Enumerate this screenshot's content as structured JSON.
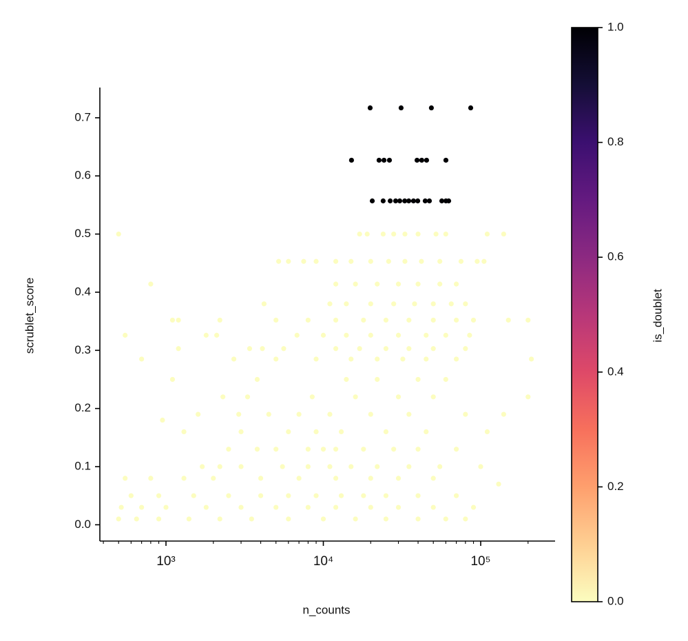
{
  "chart_data": {
    "type": "scatter",
    "x_label": "n_counts",
    "y_label": "scrublet_score",
    "xlim": [
      380,
      297000
    ],
    "ylim": [
      -0.028,
      0.752
    ],
    "x_log": true,
    "xticks": [
      {
        "value": 1000,
        "label": "10³"
      },
      {
        "value": 10000,
        "label": "10⁴"
      },
      {
        "value": 100000,
        "label": "10⁵"
      }
    ],
    "xminorticks": [
      400,
      500,
      600,
      700,
      800,
      900,
      2000,
      3000,
      4000,
      5000,
      6000,
      7000,
      8000,
      9000,
      20000,
      30000,
      40000,
      50000,
      60000,
      70000,
      80000,
      90000,
      200000
    ],
    "yticks": [
      {
        "value": 0,
        "label": "0.0"
      },
      0.1,
      0.2,
      0.3,
      0.4,
      0.5,
      0.6,
      0.7
    ],
    "colormap": "magma_r",
    "colorbar": {
      "label": "is_doublet",
      "lim": [
        0,
        1
      ],
      "ticks": [
        {
          "value": 0,
          "label": "0.0"
        },
        0.2,
        0.4,
        0.6,
        0.8,
        {
          "value": 1,
          "label": "1.0"
        }
      ]
    },
    "groups": [
      {
        "color_value": 0,
        "x": [
          500,
          17000,
          19000,
          24000,
          28000,
          33000,
          40000,
          52000,
          60000,
          110000,
          140000,
          5200,
          6000,
          7500,
          9000,
          12000,
          15000,
          20000,
          26000,
          33000,
          42000,
          55000,
          75000,
          95000,
          105000,
          800,
          12000,
          16000,
          22000,
          30000,
          40000,
          55000,
          70000,
          4200,
          11000,
          14000,
          20000,
          28000,
          38000,
          50000,
          65000,
          80000,
          1100,
          1200,
          2200,
          5000,
          8000,
          12000,
          18000,
          25000,
          35000,
          50000,
          70000,
          90000,
          150000,
          200000,
          550,
          1800,
          2100,
          6800,
          10000,
          14000,
          20000,
          30000,
          45000,
          60000,
          85000,
          1200,
          3400,
          4100,
          5600,
          12000,
          17000,
          25000,
          35000,
          50000,
          80000,
          700,
          2700,
          5000,
          9000,
          15000,
          22000,
          32000,
          45000,
          70000,
          210000,
          1100,
          3800,
          14000,
          22000,
          40000,
          60000,
          2300,
          3300,
          8500,
          16000,
          30000,
          50000,
          200000,
          1600,
          2900,
          4500,
          7000,
          11000,
          20000,
          35000,
          80000,
          140000,
          950,
          1300,
          3000,
          6000,
          9000,
          13000,
          25000,
          45000,
          110000,
          2500,
          3800,
          5000,
          8000,
          10000,
          12000,
          18000,
          28000,
          40000,
          70000,
          1700,
          2200,
          3000,
          5500,
          8000,
          11000,
          15000,
          22000,
          35000,
          55000,
          100000,
          550,
          800,
          1300,
          2000,
          4000,
          7000,
          12000,
          20000,
          30000,
          50000,
          130000,
          600,
          900,
          1500,
          2500,
          4000,
          6000,
          9000,
          13000,
          18000,
          25000,
          40000,
          70000,
          520,
          700,
          1000,
          1800,
          3000,
          5000,
          8000,
          12000,
          20000,
          30000,
          50000,
          90000,
          500,
          650,
          900,
          1400,
          2200,
          3500,
          6000,
          10000,
          16000,
          25000,
          40000,
          60000,
          80000
        ],
        "y": [
          0.5,
          0.5,
          0.5,
          0.5,
          0.5,
          0.5,
          0.5,
          0.5,
          0.5,
          0.5,
          0.5,
          0.453,
          0.453,
          0.453,
          0.453,
          0.453,
          0.453,
          0.453,
          0.453,
          0.453,
          0.453,
          0.453,
          0.453,
          0.453,
          0.453,
          0.414,
          0.414,
          0.414,
          0.414,
          0.414,
          0.414,
          0.414,
          0.414,
          0.38,
          0.38,
          0.38,
          0.38,
          0.38,
          0.38,
          0.38,
          0.38,
          0.38,
          0.352,
          0.352,
          0.352,
          0.352,
          0.352,
          0.352,
          0.352,
          0.352,
          0.352,
          0.352,
          0.352,
          0.352,
          0.352,
          0.352,
          0.326,
          0.326,
          0.326,
          0.326,
          0.326,
          0.326,
          0.326,
          0.326,
          0.326,
          0.326,
          0.326,
          0.303,
          0.303,
          0.303,
          0.303,
          0.303,
          0.303,
          0.303,
          0.303,
          0.303,
          0.303,
          0.285,
          0.285,
          0.285,
          0.285,
          0.285,
          0.285,
          0.285,
          0.285,
          0.285,
          0.285,
          0.25,
          0.25,
          0.25,
          0.25,
          0.25,
          0.25,
          0.22,
          0.22,
          0.22,
          0.22,
          0.22,
          0.22,
          0.22,
          0.19,
          0.19,
          0.19,
          0.19,
          0.19,
          0.19,
          0.19,
          0.19,
          0.19,
          0.18,
          0.16,
          0.16,
          0.16,
          0.16,
          0.16,
          0.16,
          0.16,
          0.16,
          0.13,
          0.13,
          0.13,
          0.13,
          0.13,
          0.13,
          0.13,
          0.13,
          0.13,
          0.13,
          0.1,
          0.1,
          0.1,
          0.1,
          0.1,
          0.1,
          0.1,
          0.1,
          0.1,
          0.1,
          0.1,
          0.08,
          0.08,
          0.08,
          0.08,
          0.08,
          0.08,
          0.08,
          0.08,
          0.08,
          0.08,
          0.07,
          0.05,
          0.05,
          0.05,
          0.05,
          0.05,
          0.05,
          0.05,
          0.05,
          0.05,
          0.05,
          0.05,
          0.05,
          0.03,
          0.03,
          0.03,
          0.03,
          0.03,
          0.03,
          0.03,
          0.03,
          0.03,
          0.03,
          0.03,
          0.03,
          0.01,
          0.01,
          0.01,
          0.01,
          0.01,
          0.01,
          0.01,
          0.01,
          0.01,
          0.01,
          0.01,
          0.01,
          0.01
        ]
      },
      {
        "color_value": 1,
        "x": [
          19840,
          31200,
          48600,
          86400,
          15100,
          22600,
          24300,
          26300,
          39400,
          42200,
          45300,
          60100,
          20460,
          24000,
          26600,
          28800,
          30600,
          32900,
          34900,
          37400,
          39800,
          44400,
          47200,
          56600,
          60100,
          62600
        ],
        "y": [
          0.717,
          0.717,
          0.717,
          0.717,
          0.627,
          0.627,
          0.627,
          0.627,
          0.627,
          0.627,
          0.627,
          0.627,
          0.557,
          0.557,
          0.557,
          0.557,
          0.557,
          0.557,
          0.557,
          0.557,
          0.557,
          0.557,
          0.557,
          0.557,
          0.557,
          0.557
        ]
      }
    ]
  }
}
